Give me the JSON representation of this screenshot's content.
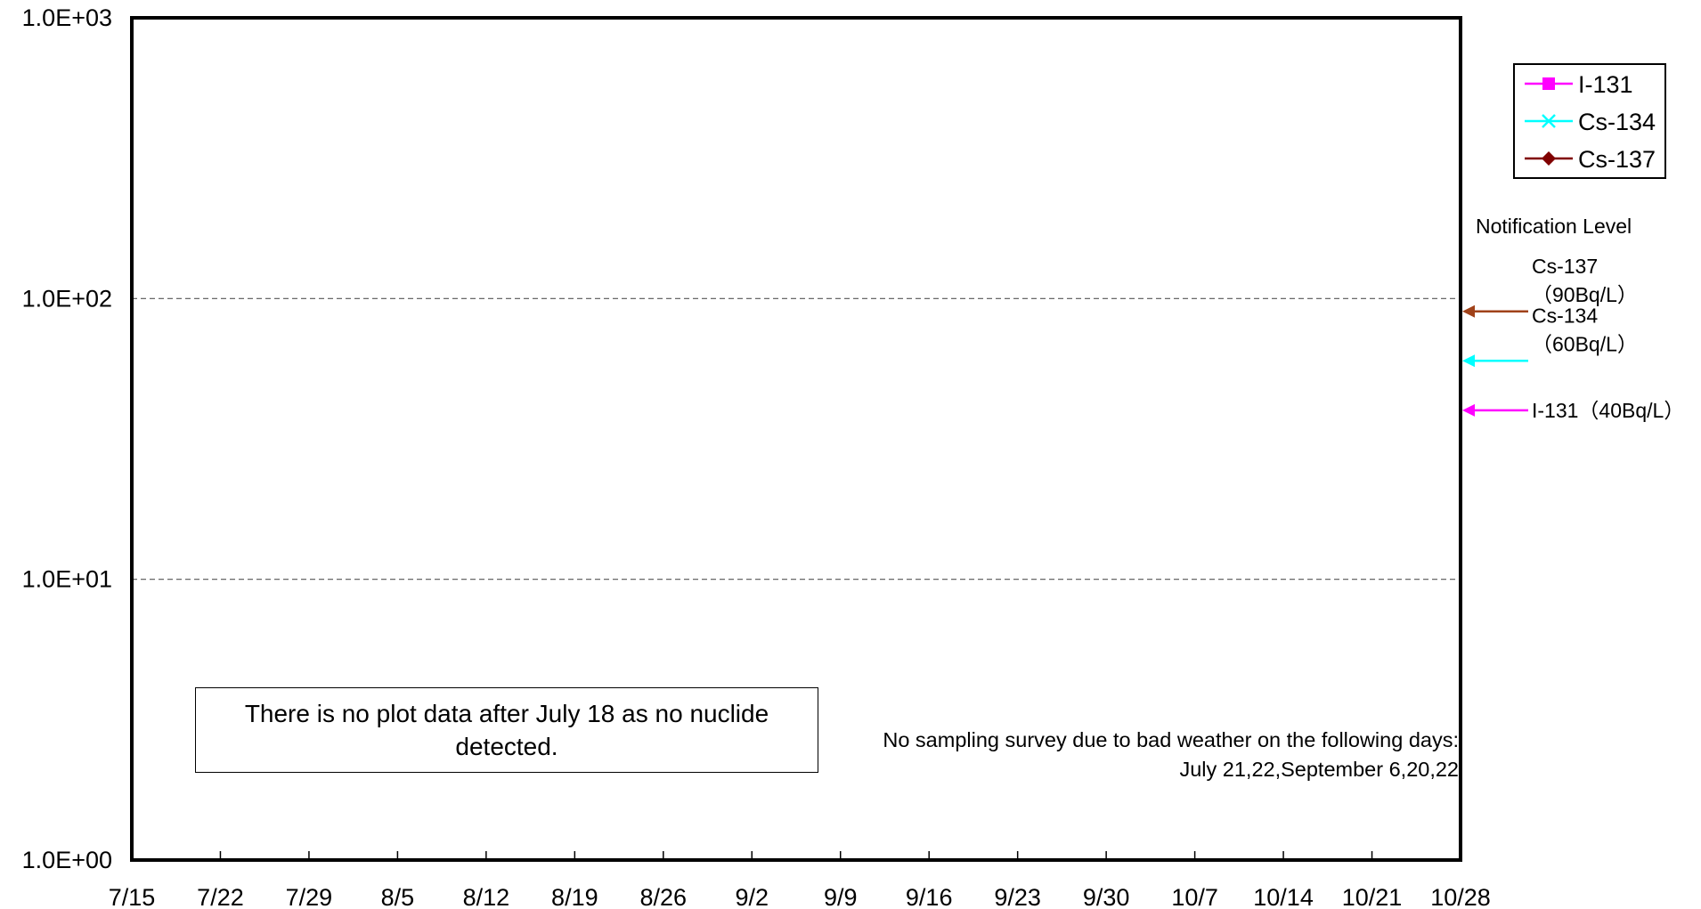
{
  "chart_data": {
    "type": "line",
    "title": "",
    "xlabel": "",
    "ylabel": "",
    "x_ticks": [
      "7/15",
      "7/22",
      "7/29",
      "8/5",
      "8/12",
      "8/19",
      "8/26",
      "9/2",
      "9/9",
      "9/16",
      "9/23",
      "9/30",
      "10/7",
      "10/14",
      "10/21",
      "10/28"
    ],
    "xlim": [
      "7/15",
      "10/28"
    ],
    "y_scale": "log",
    "ylim": [
      1,
      1000
    ],
    "y_ticks": [
      {
        "value": 1,
        "label": "1.0E+00"
      },
      {
        "value": 10,
        "label": "1.0E+01"
      },
      {
        "value": 100,
        "label": "1.0E+02"
      },
      {
        "value": 1000,
        "label": "1.0E+03"
      }
    ],
    "grid": "dashed horizontal at major y ticks",
    "legend_position": "top-right, outside plot",
    "series": [
      {
        "name": "I-131",
        "color": "#FF00FF",
        "marker": "square",
        "values": []
      },
      {
        "name": "Cs-134",
        "color": "#00FFFF",
        "marker": "x",
        "values": []
      },
      {
        "name": "Cs-137",
        "color": "#800000",
        "marker": "diamond",
        "values": []
      }
    ],
    "notification": {
      "title": "Notification Level",
      "levels": [
        {
          "nuclide": "Cs-137",
          "value": 90,
          "label_lines": [
            "Cs-137",
            "（90Bq/L）"
          ],
          "color": "#A0421A"
        },
        {
          "nuclide": "Cs-134",
          "value": 60,
          "label_lines": [
            "Cs-134",
            "（60Bq/L）"
          ],
          "color": "#00FFFF"
        },
        {
          "nuclide": "I-131",
          "value": 40,
          "label_lines": [
            "I-131（40Bq/L）"
          ],
          "color": "#FF00FF"
        }
      ]
    },
    "annotations": {
      "no_data_lines": [
        "There is no plot data after July 18 as no nuclide",
        "detected."
      ],
      "weather_lines": [
        "No sampling survey due to bad weather on the following days:",
        "July 21,22,September 6,20,22"
      ]
    }
  }
}
